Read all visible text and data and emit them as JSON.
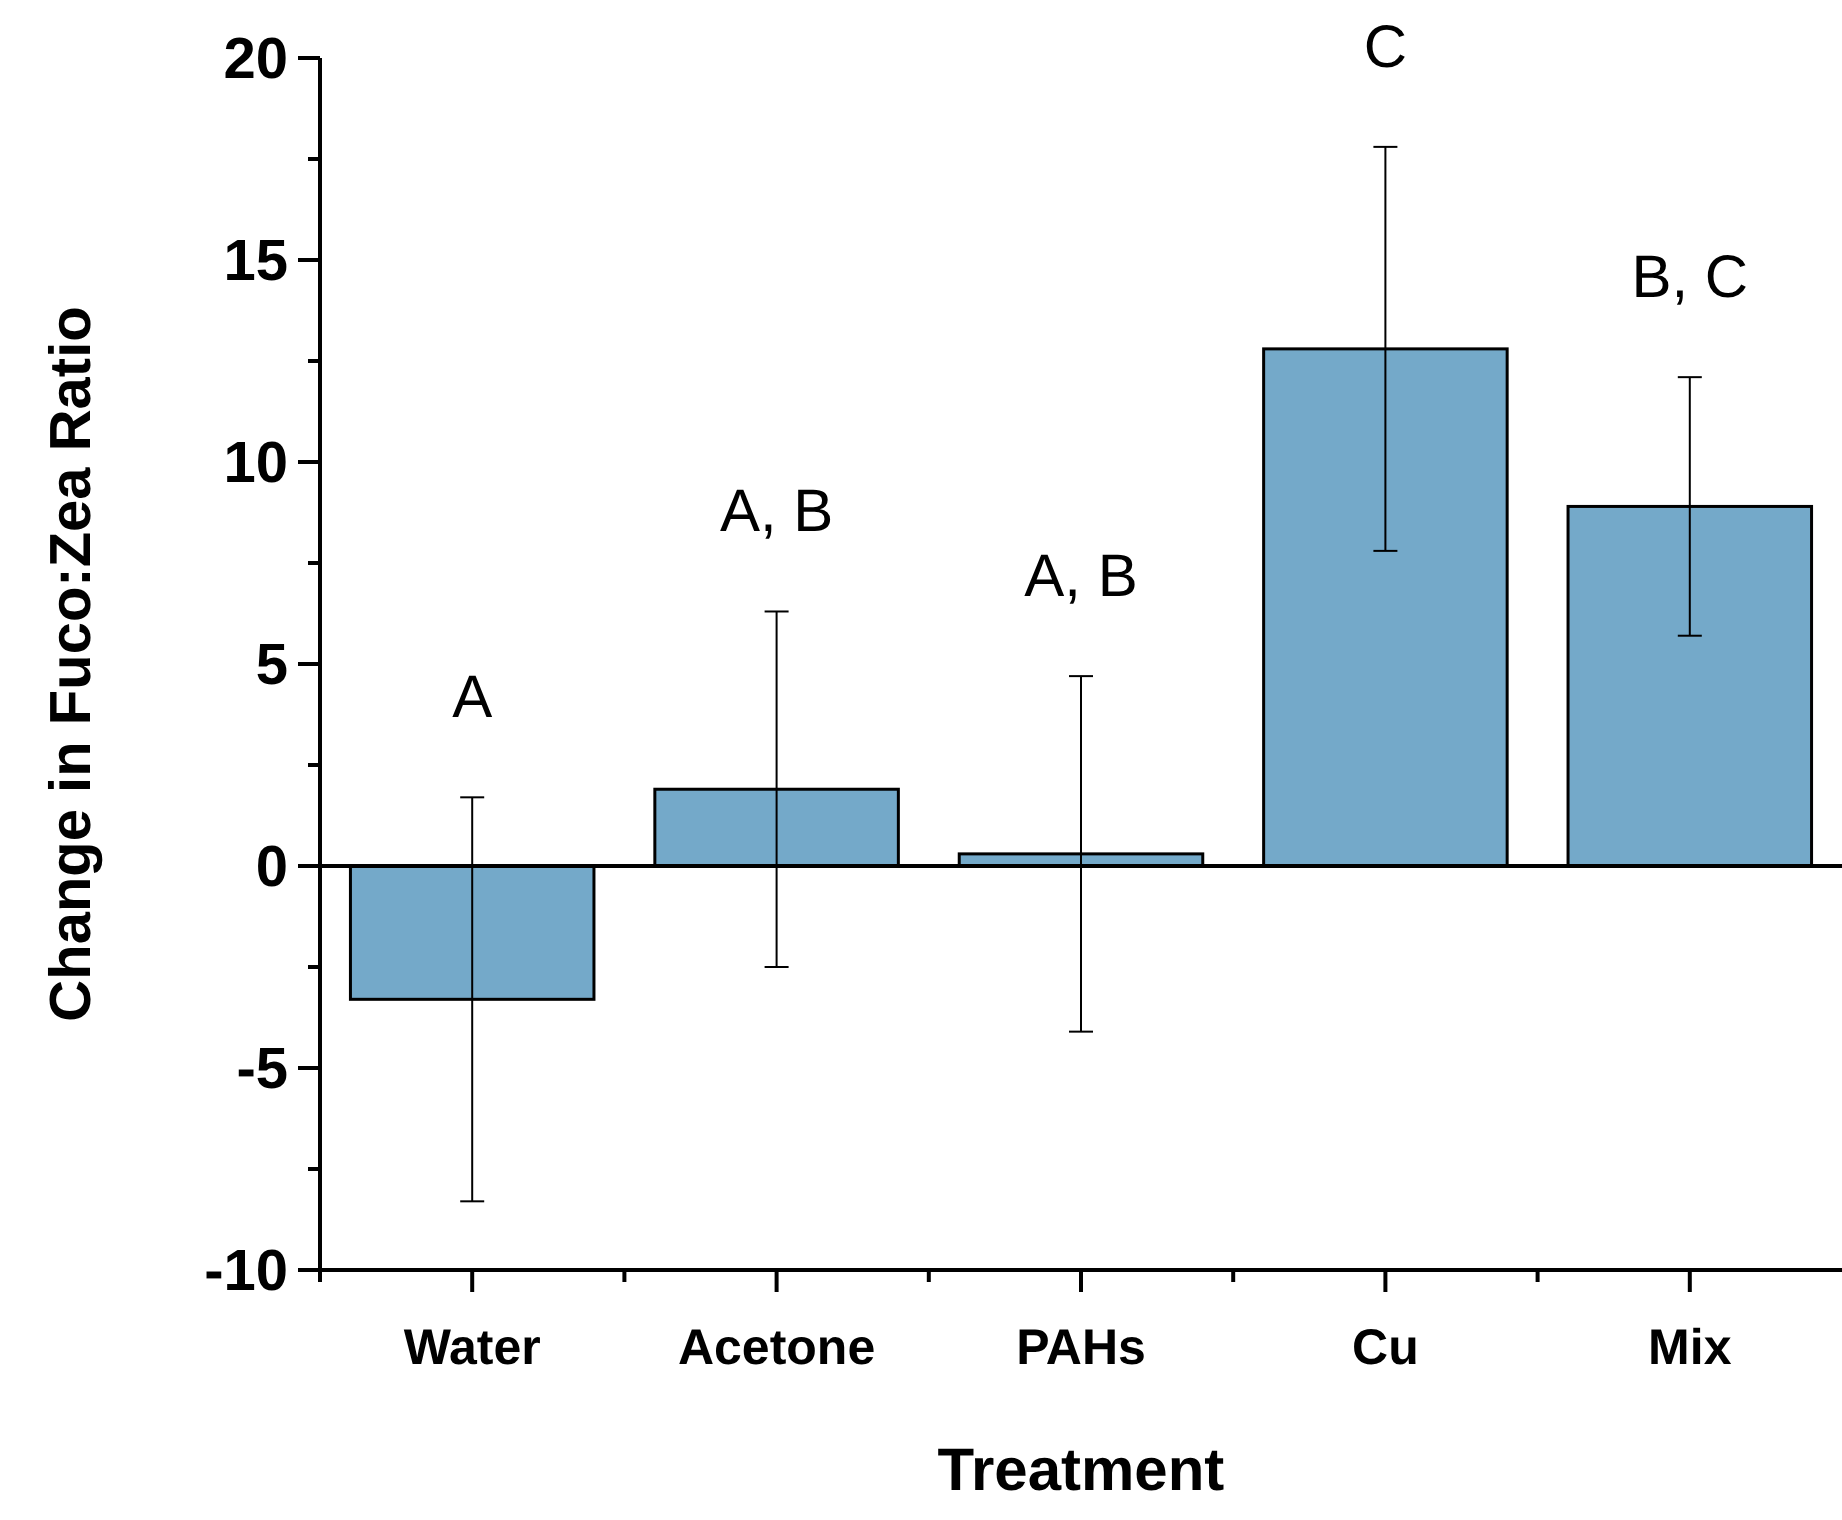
{
  "chart_data": {
    "type": "bar",
    "xlabel": "Treatment",
    "ylabel": "Change in Fuco:Zea Ratio",
    "categories": [
      "Water",
      "Acetone",
      "PAHs",
      "Cu",
      "Mix"
    ],
    "values": [
      -3.3,
      1.9,
      0.3,
      12.8,
      8.9
    ],
    "errors": [
      5.0,
      4.4,
      4.4,
      5.0,
      3.2
    ],
    "color": "#74a9c9",
    "ylim": [
      -10,
      20
    ],
    "yticks": [
      -10,
      {
        "value": -7.5,
        "label": null
      },
      -5,
      {
        "value": -2.5,
        "label": null
      },
      0,
      {
        "value": 2.5,
        "label": null
      },
      5,
      {
        "value": 7.5,
        "label": null
      },
      10,
      {
        "value": 12.5,
        "label": null
      },
      15,
      {
        "value": 17.5,
        "label": null
      },
      20
    ],
    "ref_lines": [
      {
        "axis": "y",
        "value": 0
      }
    ],
    "annotations": [
      "A",
      "A, B",
      "A, B",
      "C",
      "B, C"
    ],
    "grid": false
  }
}
